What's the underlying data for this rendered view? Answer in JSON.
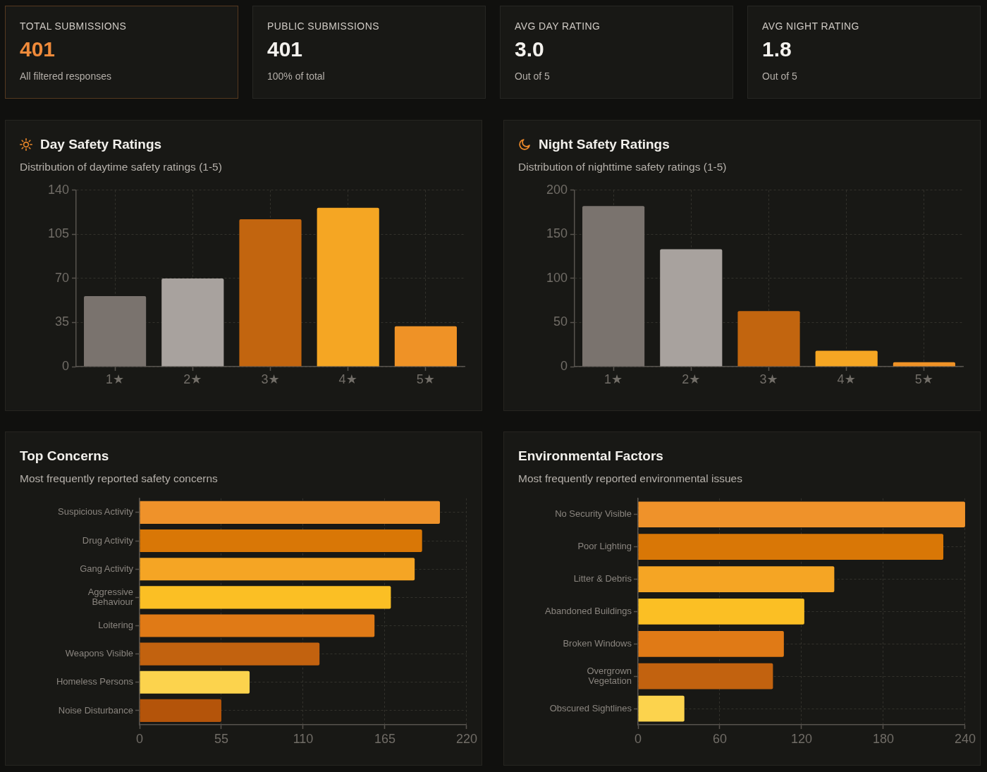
{
  "chart_data": [
    {
      "type": "other",
      "title": "TOTAL SUBMISSIONS",
      "annotations": [
        "401",
        "All filtered responses"
      ],
      "color": "#ef8a3a"
    },
    {
      "type": "other",
      "title": "PUBLIC SUBMISSIONS",
      "annotations": [
        "401",
        "100% of total"
      ],
      "color": "#f4f2ee"
    },
    {
      "type": "other",
      "title": "AVG DAY RATING",
      "annotations": [
        "3.0",
        "Out of 5"
      ],
      "color": "#f4f2ee"
    },
    {
      "type": "other",
      "title": "AVG NIGHT RATING",
      "annotations": [
        "1.8",
        "Out of 5"
      ],
      "color": "#f4f2ee"
    },
    {
      "type": "bar",
      "title": "Day Safety Ratings",
      "subtitle": "Distribution of daytime safety ratings (1-5)",
      "categories": [
        "1★",
        "2★",
        "3★",
        "4★",
        "5★"
      ],
      "values": [
        56,
        70,
        117,
        126,
        32
      ],
      "colors": [
        "#7a736e",
        "#a8a29e",
        "#c2650f",
        "#f5a623",
        "#ef9226"
      ],
      "ylim": [
        0,
        140
      ],
      "yticks": [
        0,
        35,
        70,
        105,
        140
      ],
      "grid": true
    },
    {
      "type": "bar",
      "title": "Night Safety Ratings",
      "subtitle": "Distribution of nighttime safety ratings (1-5)",
      "categories": [
        "1★",
        "2★",
        "3★",
        "4★",
        "5★"
      ],
      "values": [
        182,
        133,
        63,
        18,
        5
      ],
      "colors": [
        "#7a736e",
        "#a8a29e",
        "#c2650f",
        "#f5a623",
        "#ef9226"
      ],
      "ylim": [
        0,
        200
      ],
      "yticks": [
        0,
        50,
        100,
        150,
        200
      ],
      "grid": true
    },
    {
      "type": "bar",
      "orientation": "horizontal",
      "title": "Top Concerns",
      "subtitle": "Most frequently reported safety concerns",
      "categories": [
        "Suspicious Activity",
        "Drug Activity",
        "Gang Activity",
        "Aggressive Behaviour",
        "Loitering",
        "Weapons Visible",
        "Homeless Persons",
        "Noise Disturbance"
      ],
      "values": [
        202,
        190,
        185,
        169,
        158,
        121,
        74,
        55
      ],
      "colors": [
        "#ef922a",
        "#d97706",
        "#f5a524",
        "#fbbf24",
        "#e07a16",
        "#c2620f",
        "#fcd34d",
        "#b4540a"
      ],
      "xlim": [
        0,
        220
      ],
      "xticks": [
        0,
        55,
        110,
        165,
        220
      ],
      "grid": true
    },
    {
      "type": "bar",
      "orientation": "horizontal",
      "title": "Environmental Factors",
      "subtitle": "Most frequently reported environmental issues",
      "categories": [
        "No Security Visible",
        "Poor Lighting",
        "Litter & Debris",
        "Abandoned Buildings",
        "Broken Windows",
        "Overgrown Vegetation",
        "Obscured Sightlines"
      ],
      "values": [
        240,
        224,
        144,
        122,
        107,
        99,
        34
      ],
      "colors": [
        "#ef922a",
        "#d97706",
        "#f5a524",
        "#fbbf24",
        "#e07a16",
        "#c2620f",
        "#fcd34d"
      ],
      "xlim": [
        0,
        240
      ],
      "xticks": [
        0,
        60,
        120,
        180,
        240
      ],
      "grid": true
    }
  ]
}
